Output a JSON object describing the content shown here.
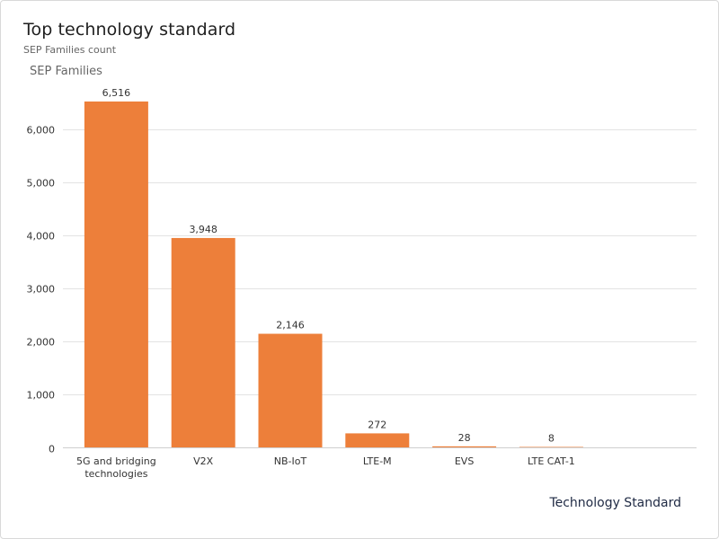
{
  "header": {
    "title": "Top technology standard",
    "subtitle": "SEP Families count"
  },
  "colors": {
    "bar": "#ED7F3A",
    "grid": "#e3e3e3",
    "axis": "#cfcfcf"
  },
  "chart_data": {
    "type": "bar",
    "title": "Top technology standard",
    "subtitle": "SEP Families count",
    "ylabel": "SEP Families",
    "xlabel": "Technology Standard",
    "categories": [
      "5G and bridging technologies",
      "V2X",
      "NB-IoT",
      "LTE-M",
      "EVS",
      "LTE CAT-1"
    ],
    "category_lines": [
      [
        "5G and bridging",
        "technologies"
      ],
      [
        "V2X"
      ],
      [
        "NB-IoT"
      ],
      [
        "LTE-M"
      ],
      [
        "EVS"
      ],
      [
        "LTE CAT-1"
      ]
    ],
    "values": [
      6516,
      3948,
      2146,
      272,
      28,
      8
    ],
    "data_labels": [
      "6,516",
      "3,948",
      "2,146",
      "272",
      "28",
      "8"
    ],
    "yticks": [
      0,
      1000,
      2000,
      3000,
      4000,
      5000,
      6000
    ],
    "ytick_labels": [
      "0",
      "1,000",
      "2,000",
      "3,000",
      "4,000",
      "5,000",
      "6,000"
    ],
    "ylim": [
      0,
      6516
    ],
    "grid": true,
    "legend": "none"
  }
}
